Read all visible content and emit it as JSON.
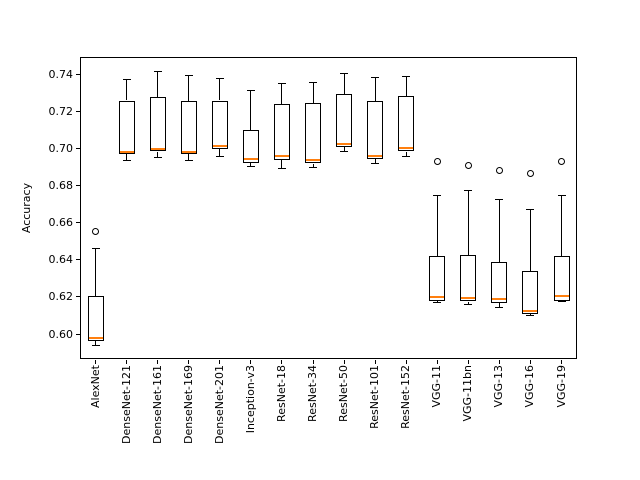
{
  "chart_data": {
    "type": "boxplot",
    "title": "",
    "xlabel": "",
    "ylabel": "Accuracy",
    "ylim": [
      0.5865,
      0.7495
    ],
    "yticks": [
      0.6,
      0.62,
      0.64,
      0.66,
      0.68,
      0.7,
      0.72,
      0.74
    ],
    "ytick_labels": [
      "0.60",
      "0.62",
      "0.64",
      "0.66",
      "0.68",
      "0.70",
      "0.72",
      "0.74"
    ],
    "grid": false,
    "legend": false,
    "orientation": "vertical",
    "categories": [
      "AlexNet",
      "DenseNet-121",
      "DenseNet-161",
      "DenseNet-169",
      "DenseNet-201",
      "Inception-v3",
      "ResNet-18",
      "ResNet-34",
      "ResNet-50",
      "ResNet-101",
      "ResNet-152",
      "VGG-11",
      "VGG-11bn",
      "VGG-13",
      "VGG-16",
      "VGG-19"
    ],
    "boxes": [
      {
        "label": "AlexNet",
        "whislo": 0.594,
        "q1": 0.596,
        "med": 0.598,
        "q3": 0.6205,
        "whishi": 0.646,
        "fliers": [
          0.6555
        ]
      },
      {
        "label": "DenseNet-121",
        "whislo": 0.6935,
        "q1": 0.697,
        "med": 0.698,
        "q3": 0.726,
        "whishi": 0.7375,
        "fliers": []
      },
      {
        "label": "DenseNet-161",
        "whislo": 0.6955,
        "q1": 0.6985,
        "med": 0.7,
        "q3": 0.728,
        "whishi": 0.7415,
        "fliers": []
      },
      {
        "label": "DenseNet-169",
        "whislo": 0.6935,
        "q1": 0.697,
        "med": 0.6985,
        "q3": 0.726,
        "whishi": 0.7395,
        "fliers": []
      },
      {
        "label": "DenseNet-201",
        "whislo": 0.696,
        "q1": 0.7,
        "med": 0.7013,
        "q3": 0.726,
        "whishi": 0.738,
        "fliers": []
      },
      {
        "label": "Inception-v3",
        "whislo": 0.6905,
        "q1": 0.6925,
        "med": 0.6945,
        "q3": 0.71,
        "whishi": 0.7315,
        "fliers": []
      },
      {
        "label": "ResNet-18",
        "whislo": 0.6895,
        "q1": 0.694,
        "med": 0.696,
        "q3": 0.724,
        "whishi": 0.735,
        "fliers": []
      },
      {
        "label": "ResNet-34",
        "whislo": 0.69,
        "q1": 0.692,
        "med": 0.694,
        "q3": 0.7245,
        "whishi": 0.736,
        "fliers": []
      },
      {
        "label": "ResNet-50",
        "whislo": 0.6985,
        "q1": 0.701,
        "med": 0.7025,
        "q3": 0.7295,
        "whishi": 0.7405,
        "fliers": []
      },
      {
        "label": "ResNet-101",
        "whislo": 0.692,
        "q1": 0.6945,
        "med": 0.696,
        "q3": 0.726,
        "whishi": 0.7385,
        "fliers": []
      },
      {
        "label": "ResNet-152",
        "whislo": 0.696,
        "q1": 0.6985,
        "med": 0.7005,
        "q3": 0.7285,
        "whishi": 0.739,
        "fliers": []
      },
      {
        "label": "VGG-11",
        "whislo": 0.617,
        "q1": 0.618,
        "med": 0.62,
        "q3": 0.642,
        "whishi": 0.675,
        "fliers": [
          0.693
        ]
      },
      {
        "label": "VGG-11bn",
        "whislo": 0.616,
        "q1": 0.6175,
        "med": 0.6195,
        "q3": 0.6425,
        "whishi": 0.6775,
        "fliers": [
          0.691
        ]
      },
      {
        "label": "VGG-13",
        "whislo": 0.6145,
        "q1": 0.6165,
        "med": 0.619,
        "q3": 0.639,
        "whishi": 0.6725,
        "fliers": [
          0.688
        ]
      },
      {
        "label": "VGG-16",
        "whislo": 0.61,
        "q1": 0.611,
        "med": 0.6125,
        "q3": 0.634,
        "whishi": 0.667,
        "fliers": [
          0.6865
        ]
      },
      {
        "label": "VGG-19",
        "whislo": 0.6175,
        "q1": 0.618,
        "med": 0.6205,
        "q3": 0.642,
        "whishi": 0.675,
        "fliers": [
          0.693
        ]
      }
    ],
    "colors": {
      "box_edge": "#000000",
      "median": "#ff7f0e",
      "background": "#ffffff",
      "text": "#000000"
    }
  }
}
